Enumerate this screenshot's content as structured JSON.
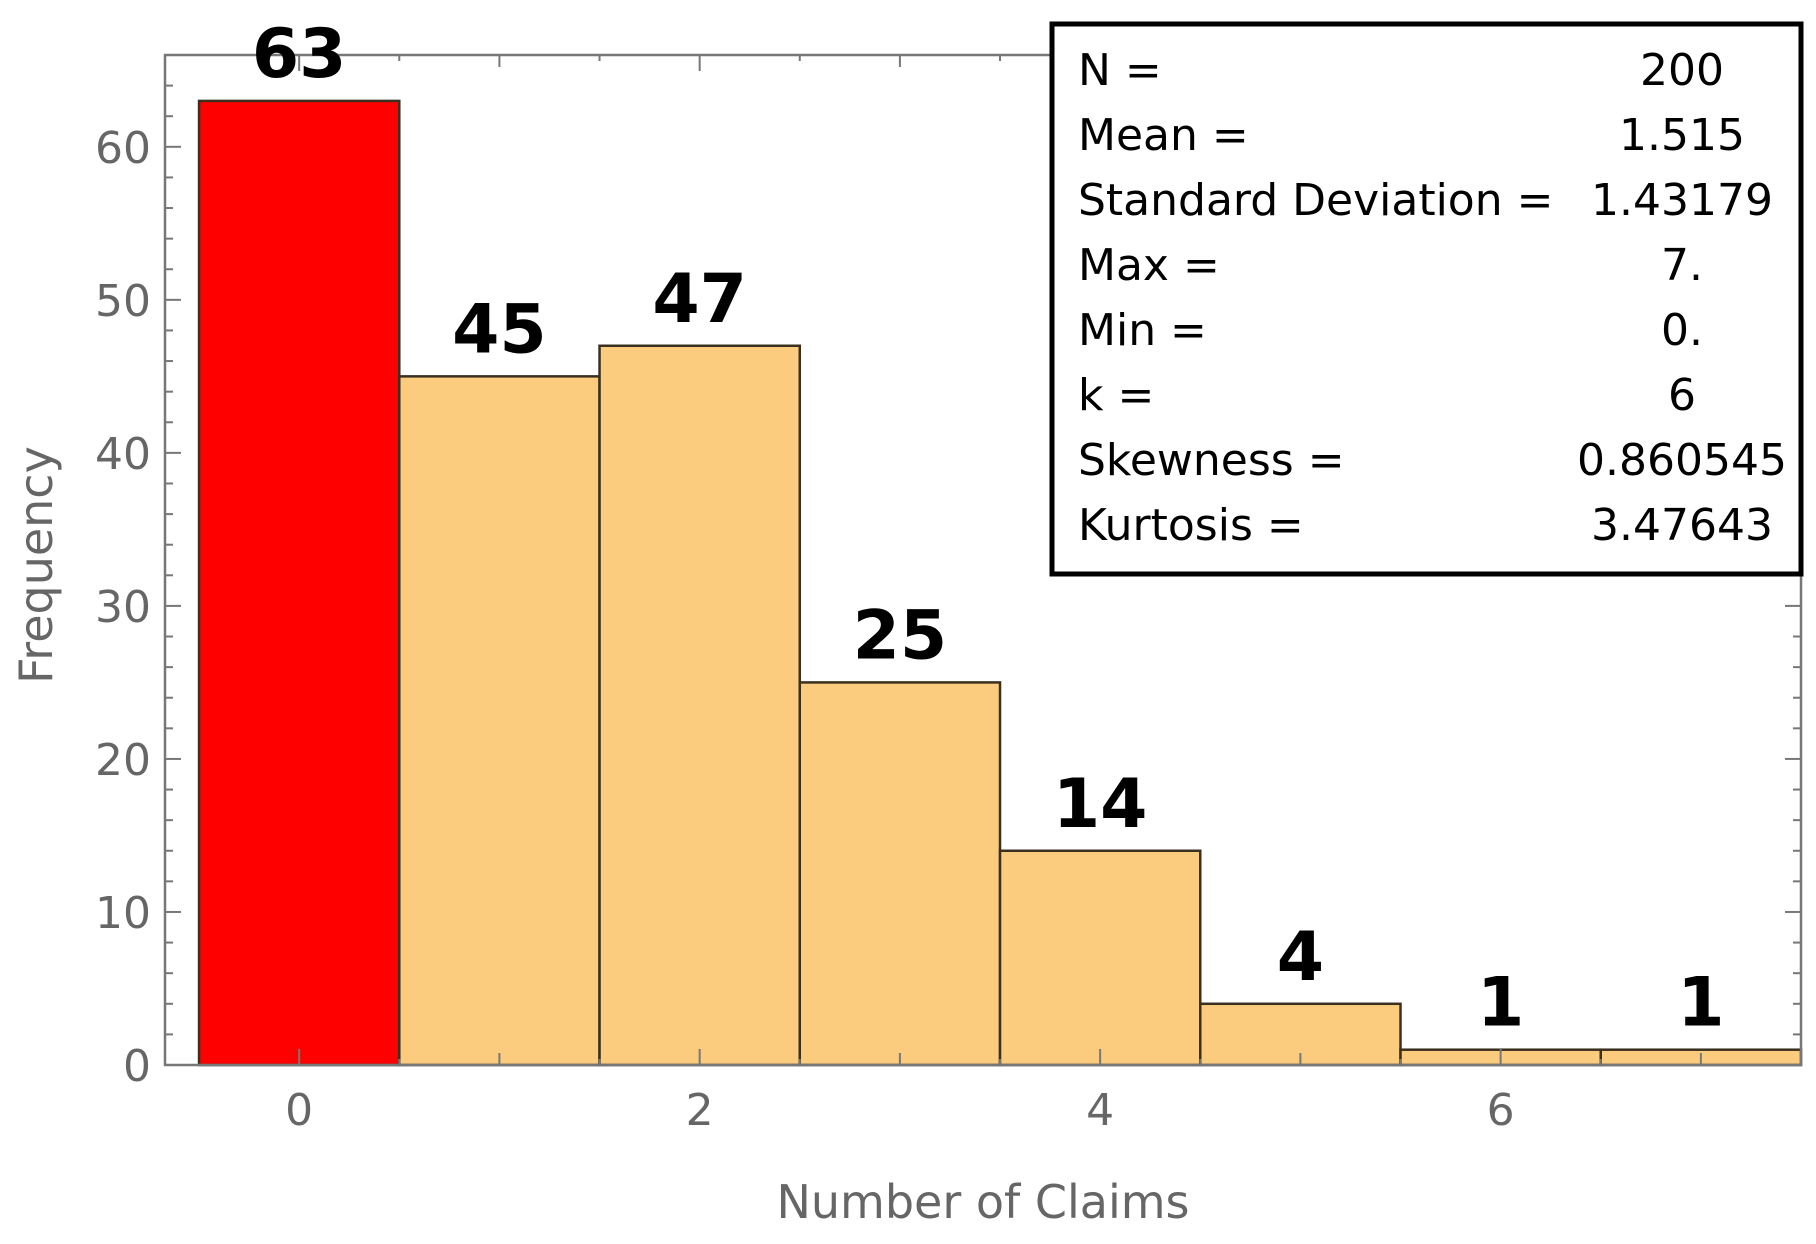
{
  "chart_data": {
    "type": "bar",
    "x": [
      0,
      1,
      2,
      3,
      4,
      5,
      6,
      7
    ],
    "values": [
      63,
      45,
      47,
      25,
      14,
      4,
      1,
      1
    ],
    "highlight_index": 0,
    "colors": {
      "highlight": "#ff0000",
      "bar": "#fccc7e",
      "bar_edge": "#3a3020",
      "frame": "#777777",
      "text": "#666666"
    },
    "xlabel": "Number of Claims",
    "ylabel": "Frequency",
    "xlim": [
      -0.67,
      7.5
    ],
    "ylim": [
      0,
      66
    ],
    "xticks": [
      0,
      2,
      4,
      6
    ],
    "yticks": [
      0,
      10,
      20,
      30,
      40,
      50,
      60
    ],
    "stats": [
      {
        "label": "N =",
        "value": "200"
      },
      {
        "label": "Mean =",
        "value": "1.515"
      },
      {
        "label": "Standard Deviation =",
        "value": "1.43179"
      },
      {
        "label": "Max =",
        "value": "7."
      },
      {
        "label": "Min =",
        "value": "0."
      },
      {
        "label": "k =",
        "value": "6"
      },
      {
        "label": "Skewness =",
        "value": "0.860545"
      },
      {
        "label": "Kurtosis =",
        "value": "3.47643"
      }
    ],
    "stats_placement": "top-right"
  }
}
